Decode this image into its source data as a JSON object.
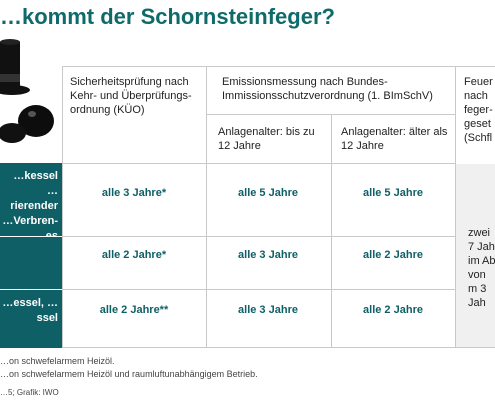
{
  "title": "…kommt der Schornsteinfeger?",
  "header": {
    "col1": "Sicherheitsprüfung nach Kehr- und Überprüfungs- ordnung (KÜO)",
    "col2": "Emissionsmessung nach Bundes- Immissionsschutzverordnung (1. BImSchV)",
    "col2a": "Anlagenalter: bis zu 12 Jahre",
    "col2b": "Anlagenalter: älter als 12 Jahre",
    "col3": "Feuer nach feger- geset (Schfl"
  },
  "rows": [
    {
      "label": "…kessel …rierender …Verbren- …es",
      "kuo": "alle 3 Jahre*",
      "em_young": "alle 5 Jahre",
      "em_old": "alle 5 Jahre"
    },
    {
      "label": "",
      "kuo": "alle 2 Jahre*",
      "em_young": "alle 3 Jahre",
      "em_old": "alle 2 Jahre"
    },
    {
      "label": "…essel, …ssel",
      "kuo": "alle 2 Jahre**",
      "em_young": "alle 3 Jahre",
      "em_old": "alle 2 Jahre"
    }
  ],
  "col3_body": "zwei 7 Jah im Ab von m 3 Jah",
  "footnotes": {
    "f1": "…on schwefelarmem Heizöl.",
    "f2": "…on schwefelarmem Heizöl und raumluftunabhängigem Betrieb.",
    "source": "…5; Grafik: IWO"
  },
  "colors": {
    "teal": "#0f5f66",
    "title": "#0f6b6a"
  }
}
